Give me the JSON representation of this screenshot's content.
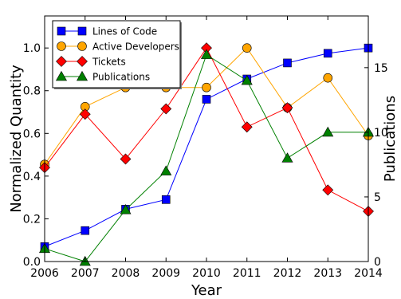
{
  "chart_data": {
    "type": "line",
    "x": [
      2006,
      2007,
      2008,
      2009,
      2010,
      2011,
      2012,
      2013,
      2014
    ],
    "xlabel": "Year",
    "ylabel": "Normalized Quantity",
    "ylabel_right": "Publications",
    "xlim": [
      2006,
      2014
    ],
    "ylim": [
      0,
      1.15
    ],
    "ylim_right": [
      0,
      19
    ],
    "x_ticks": [
      "2006",
      "2007",
      "2008",
      "2009",
      "2010",
      "2011",
      "2012",
      "2013",
      "2014"
    ],
    "y_ticks": [
      "0.0",
      "0.2",
      "0.4",
      "0.6",
      "0.8",
      "1.0"
    ],
    "y_ticks_right": [
      "0",
      "5",
      "10",
      "15"
    ],
    "legend_position": "top-left",
    "grid": false,
    "series": [
      {
        "name": "Lines of Code",
        "axis": "left",
        "color": "#0000ff",
        "marker": "square",
        "values": [
          0.07,
          0.145,
          0.245,
          0.29,
          0.76,
          0.855,
          0.93,
          0.975,
          1.0
        ]
      },
      {
        "name": "Active Developers",
        "axis": "left",
        "color": "#ffa500",
        "marker": "circle",
        "values": [
          0.455,
          0.725,
          0.815,
          0.815,
          0.815,
          1.0,
          0.72,
          0.86,
          0.59
        ]
      },
      {
        "name": "Tickets",
        "axis": "left",
        "color": "#ff0000",
        "marker": "diamond",
        "values": [
          0.44,
          0.69,
          0.48,
          0.715,
          1.0,
          0.63,
          0.72,
          0.335,
          0.235
        ]
      },
      {
        "name": "Publications",
        "axis": "right",
        "color": "#008000",
        "marker": "triangle",
        "values": [
          1,
          0,
          4,
          7,
          16,
          14,
          8,
          10,
          10
        ]
      }
    ]
  }
}
